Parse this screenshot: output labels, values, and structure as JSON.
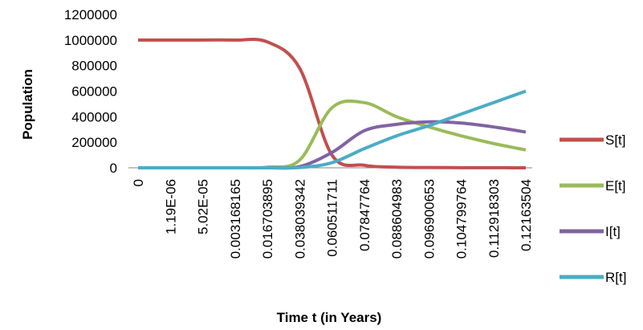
{
  "chart_data": {
    "type": "line",
    "xlabel": "Time t (in Years)",
    "ylabel": "Population",
    "ylim": [
      0,
      1200000
    ],
    "yticks": [
      "0",
      "200000",
      "400000",
      "600000",
      "800000",
      "1000000",
      "1200000"
    ],
    "x_tick_labels": [
      "0",
      "1.19E-06",
      "5.02E-05",
      "0.003168165",
      "0.016703895",
      "0.038039342",
      "0.060511711",
      "0.07847764",
      "0.088604983",
      "0.096900653",
      "0.104799764",
      "0.112918303",
      "0.12163504"
    ],
    "legend_position": "right",
    "grid": false,
    "series": [
      {
        "name": "S[t]",
        "color": "#C0504D",
        "values": [
          1000000,
          1000000,
          1000000,
          999500,
          985000,
          780000,
          100000,
          20000,
          5000,
          2000,
          1000,
          500,
          300
        ]
      },
      {
        "name": "E[t]",
        "color": "#9BBB59",
        "values": [
          0,
          0,
          0,
          200,
          5000,
          60000,
          470000,
          510000,
          400000,
          320000,
          250000,
          190000,
          140000
        ]
      },
      {
        "name": "I[t]",
        "color": "#8064A2",
        "values": [
          0,
          0,
          0,
          0,
          500,
          10000,
          120000,
          290000,
          340000,
          360000,
          350000,
          320000,
          280000
        ]
      },
      {
        "name": "R[t]",
        "color": "#4BACC6",
        "values": [
          0,
          0,
          0,
          0,
          0,
          2000,
          40000,
          150000,
          250000,
          330000,
          420000,
          510000,
          600000
        ]
      }
    ]
  }
}
